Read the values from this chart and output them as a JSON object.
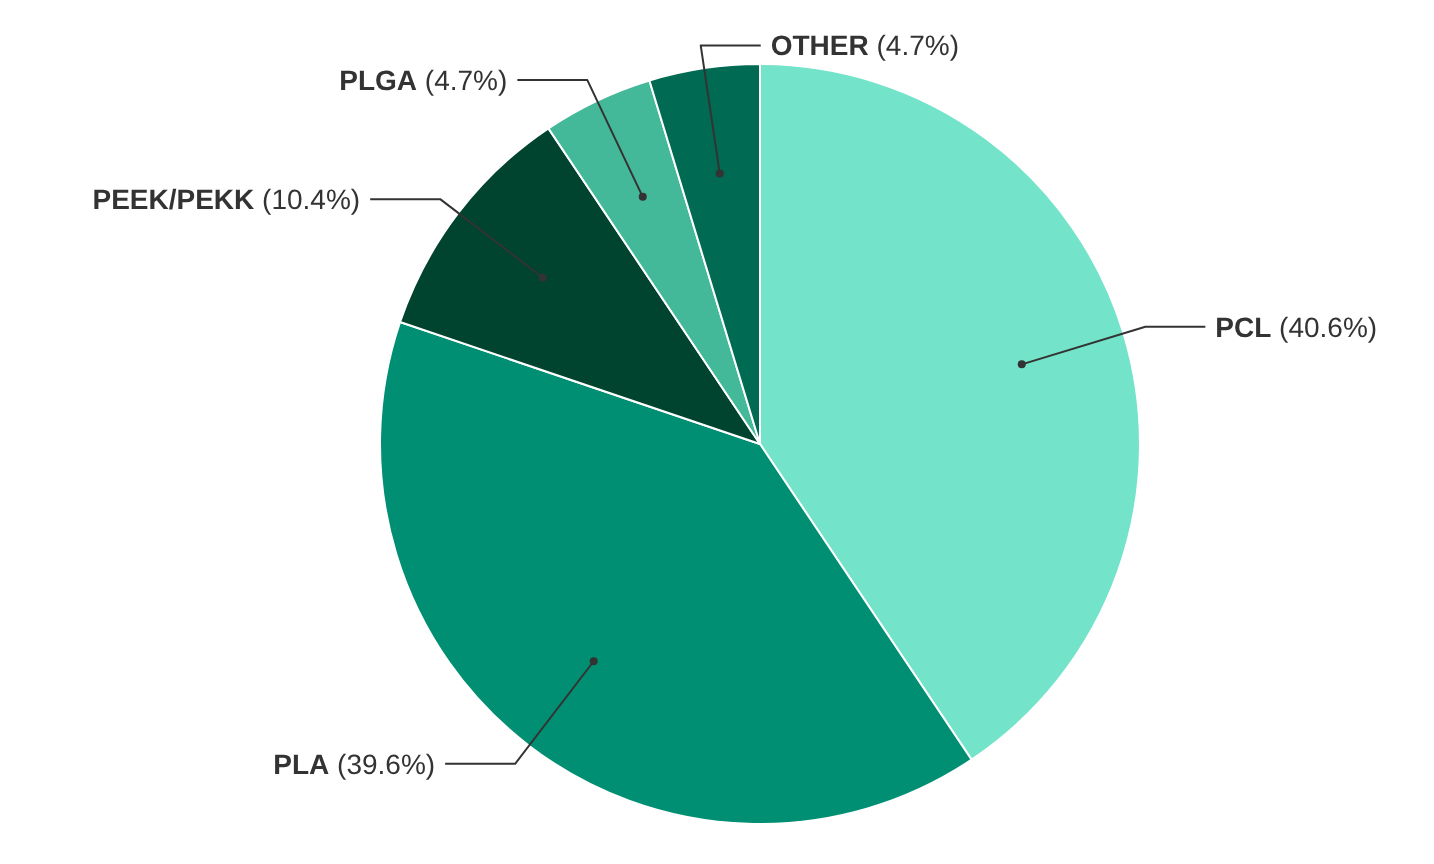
{
  "chart_data": {
    "type": "pie",
    "categories": [
      "PCL",
      "PLA",
      "PEEK/PEKK",
      "PLGA",
      "OTHER"
    ],
    "values": [
      40.6,
      39.6,
      10.4,
      4.7,
      4.7
    ],
    "colors": [
      "#73e3c9",
      "#008f72",
      "#00432e",
      "#44b99a",
      "#006a52"
    ],
    "value_labels": [
      "(40.6%)",
      "(39.6%)",
      "(10.4%)",
      "(4.7%)",
      "(4.7%)"
    ]
  }
}
